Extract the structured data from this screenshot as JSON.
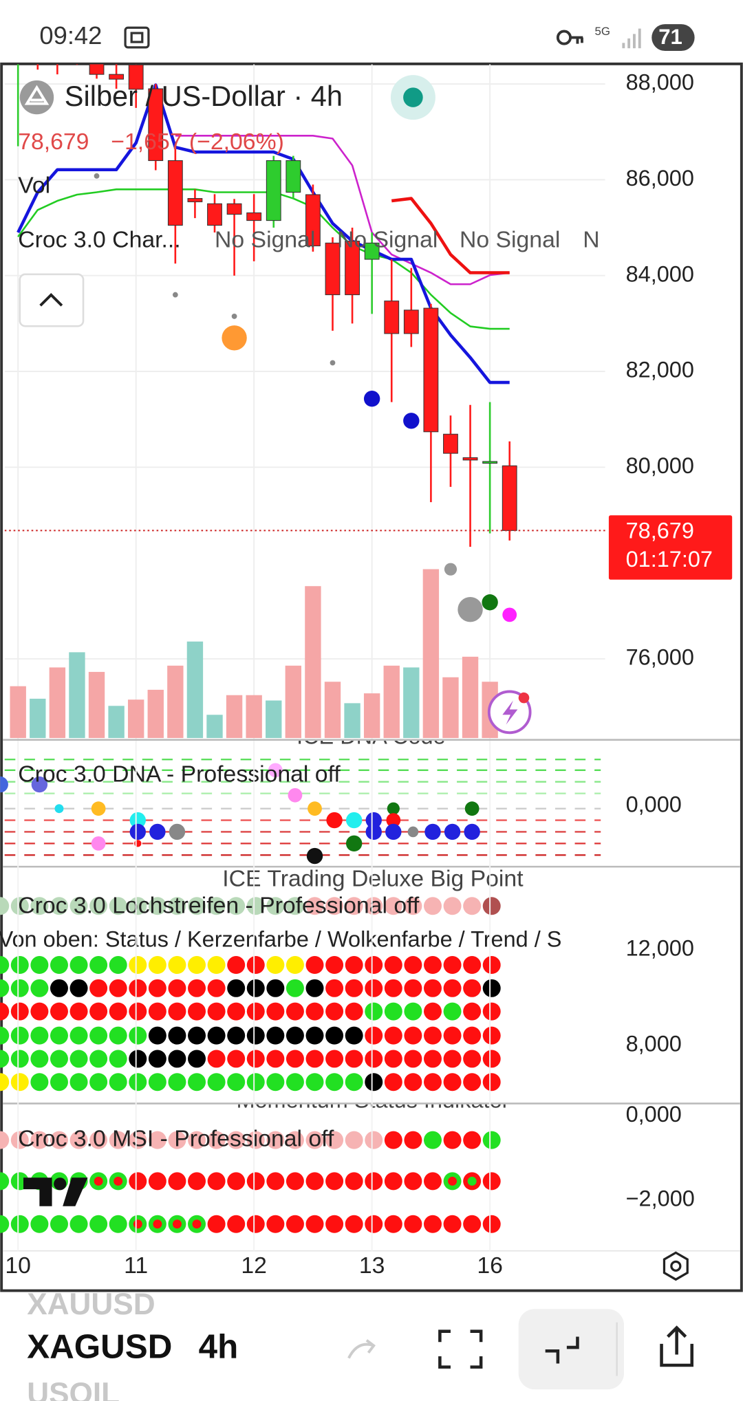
{
  "status_bar": {
    "time": "09:42",
    "network": "5G",
    "battery": "71"
  },
  "chart_data": {
    "type": "candlestick",
    "title": "Silber / US-Dollar · 4h",
    "legend": {
      "price": "78,679",
      "change": "−1,657 (−2,06%)",
      "volume": "Vol",
      "indicator": "Croc 3.0 Char...",
      "signals": [
        "No Signal",
        "No Signal",
        "No Signal",
        "N"
      ]
    },
    "categories": [
      "10",
      null,
      null,
      null,
      null,
      null,
      "11",
      null,
      null,
      null,
      null,
      null,
      "12",
      null,
      null,
      null,
      null,
      null,
      "13",
      null,
      null,
      null,
      null,
      null,
      "16",
      null
    ],
    "open": [
      88.6,
      88.8,
      88.7,
      88.9,
      88.6,
      88.2,
      88.4,
      87.9,
      86.4,
      85.61,
      85.5,
      85.5,
      85.31,
      85.15,
      85.74,
      85.69,
      84.68,
      84.72,
      84.34,
      83.47,
      83.28,
      83.32,
      80.69,
      80.2,
      80.09,
      80.03
    ],
    "high": [
      89.0,
      89.2,
      89.0,
      89.3,
      89.0,
      88.6,
      88.6,
      88.0,
      86.68,
      85.8,
      85.7,
      85.6,
      85.7,
      86.5,
      86.5,
      85.9,
      84.8,
      85.0,
      84.9,
      84.34,
      84.16,
      83.41,
      81.08,
      81.3,
      81.36,
      80.54
    ],
    "low": [
      86.7,
      88.3,
      88.2,
      88.4,
      88.11,
      87.9,
      87.5,
      86.2,
      84.25,
      85.2,
      84.9,
      84.0,
      84.3,
      85.0,
      85.6,
      84.5,
      82.85,
      83.0,
      83.2,
      81.36,
      82.51,
      79.27,
      79.59,
      78.34,
      78.62,
      78.47
    ],
    "close": [
      88.9,
      88.6,
      88.5,
      88.6,
      88.2,
      88.1,
      87.89,
      86.4,
      85.05,
      85.54,
      85.05,
      85.28,
      85.15,
      86.4,
      86.4,
      84.62,
      83.6,
      83.6,
      84.68,
      82.79,
      82.79,
      80.74,
      80.29,
      80.15,
      80.12,
      78.679
    ],
    "up_color": "#2ecc2e",
    "down_color": "#ff1a1a",
    "series": [
      {
        "color": "#22cc22",
        "width": 2,
        "values": [
          84.81,
          85.37,
          85.56,
          85.69,
          85.74,
          85.8,
          85.8,
          85.8,
          85.8,
          85.8,
          85.74,
          85.74,
          85.74,
          85.74,
          85.61,
          85.43,
          85.0,
          84.62,
          84.44,
          84.34,
          84.06,
          83.6,
          83.22,
          82.94,
          82.89,
          82.89
        ]
      },
      {
        "color": "#cc22cc",
        "width": 2,
        "values": [
          null,
          null,
          null,
          null,
          null,
          null,
          null,
          null,
          86.92,
          86.92,
          86.92,
          86.92,
          86.92,
          86.92,
          86.92,
          86.92,
          86.86,
          86.3,
          84.9,
          84.44,
          84.25,
          84.06,
          83.82,
          83.82,
          84.01,
          84.06
        ]
      },
      {
        "color": "#1515dd",
        "width": 3.5,
        "values": [
          84.9,
          85.74,
          86.21,
          86.21,
          86.21,
          86.21,
          86.77,
          87.98,
          86.68,
          86.58,
          86.58,
          86.58,
          86.58,
          86.58,
          86.43,
          85.74,
          85.09,
          84.72,
          84.53,
          84.34,
          84.34,
          83.32,
          82.76,
          82.29,
          81.77,
          81.77
        ]
      },
      {
        "color": "#ee1111",
        "width": 3.5,
        "values": [
          null,
          null,
          null,
          null,
          null,
          null,
          null,
          null,
          null,
          null,
          null,
          null,
          null,
          null,
          null,
          null,
          null,
          null,
          null,
          85.56,
          85.61,
          85.09,
          84.44,
          84.06,
          84.06,
          84.06
        ]
      }
    ],
    "markers": [
      {
        "color": "#ff9933",
        "size": 14,
        "values": [
          null,
          null,
          null,
          null,
          null,
          null,
          null,
          null,
          null,
          null,
          null,
          82.7,
          null,
          null,
          null,
          null,
          null,
          null,
          null,
          null,
          null,
          null,
          null,
          null,
          null,
          null
        ]
      },
      {
        "color": "#1111cc",
        "size": 9,
        "values": [
          null,
          null,
          null,
          null,
          null,
          null,
          null,
          null,
          null,
          null,
          null,
          null,
          null,
          null,
          null,
          null,
          null,
          null,
          81.43,
          null,
          80.97,
          null,
          null,
          null,
          null,
          null
        ]
      },
      {
        "color": "#888888",
        "size": 3,
        "values": [
          null,
          null,
          null,
          null,
          86.08,
          null,
          null,
          null,
          83.6,
          null,
          null,
          83.15,
          null,
          null,
          null,
          null,
          82.18,
          null,
          null,
          null,
          null,
          null,
          null,
          null,
          null,
          null
        ]
      },
      {
        "color": "#999999",
        "size": 7,
        "values": [
          null,
          null,
          null,
          null,
          null,
          null,
          null,
          null,
          null,
          null,
          null,
          null,
          null,
          null,
          null,
          null,
          null,
          null,
          null,
          null,
          null,
          null,
          77.87,
          null,
          null,
          null
        ]
      },
      {
        "color": "#999999",
        "size": 14,
        "values": [
          null,
          null,
          null,
          null,
          null,
          null,
          null,
          null,
          null,
          null,
          null,
          null,
          null,
          null,
          null,
          null,
          null,
          null,
          null,
          null,
          null,
          null,
          null,
          77.03,
          null,
          null
        ]
      },
      {
        "color": "#117711",
        "size": 9,
        "values": [
          null,
          null,
          null,
          null,
          null,
          null,
          null,
          null,
          null,
          null,
          null,
          null,
          null,
          null,
          null,
          null,
          null,
          null,
          null,
          null,
          null,
          null,
          null,
          null,
          77.18,
          null
        ]
      },
      {
        "color": "#ff22ff",
        "size": 8,
        "values": [
          null,
          null,
          null,
          null,
          null,
          null,
          null,
          null,
          null,
          null,
          null,
          null,
          null,
          null,
          null,
          null,
          null,
          null,
          null,
          null,
          null,
          null,
          null,
          null,
          null,
          76.92
        ]
      }
    ],
    "volume": {
      "values": [
        58,
        44,
        79,
        96,
        74,
        36,
        43,
        54,
        81,
        108,
        26,
        48,
        48,
        42,
        81,
        170,
        63,
        39,
        50,
        81,
        79,
        189,
        68,
        91,
        63,
        null
      ],
      "ylim": [
        0,
        400
      ],
      "colors": "PTPTPTPPPTTPPTPPPTPPTPPPPP",
      "palette": {
        "P": "#f5a6a6",
        "T": "#8ed2c8"
      }
    },
    "ylim": [
      74.31,
      88.41
    ],
    "yticks": [
      {
        "value": 88,
        "label": "88,000"
      },
      {
        "value": 86,
        "label": "86,000"
      },
      {
        "value": 84,
        "label": "84,000"
      },
      {
        "value": 82,
        "label": "82,000"
      },
      {
        "value": 80,
        "label": "80,000"
      },
      {
        "value": 76,
        "label": "76,000"
      }
    ],
    "grid": true,
    "last_label": "78,679",
    "countdown": "01:17:07"
  },
  "panes": [
    {
      "title": "ICE DNA Code",
      "legend": "Croc 3.0 DNA - Professional off",
      "axis": [
        "0,000"
      ]
    },
    {
      "title": "ICE Trading Deluxe Big Point",
      "legend": "Croc 3.0 Lochstreifen - Professional off",
      "note": "Von oben: Status / Kerzenfarbe / Wolkenfarbe / Trend / S",
      "axis": [
        "12,000",
        "8,000"
      ],
      "rows": [
        "QQQQQQQQQQQQQQQQPPPPPPPPPX",
        "GGGGGGGYYYYYRRYYRRRRRRRRRR",
        "GGGKKRRRRRRRKKKGKRRRRRRRRK",
        "RRRRRRRRRRRRRRRRRRRGGGRGRR",
        "GGGGGGGGKKKKKKKKKKKRRRRRRR",
        "GGGGGGGKKKKRRRRRRRRRRRRRRR",
        "YYGGGGGGGGGGGGGGGGGKRRRRRR"
      ]
    },
    {
      "title": "Momentum Status Indikator",
      "legend": "Croc 3.0 MSI - Professional off",
      "axis": [
        "0,000",
        "−2,000"
      ],
      "rows": [
        "PPPPPPPPPPPPPPPPPPPPRRGRRG",
        "GGGGGggRRRRRRRRRRRRRRRRgrR",
        "GGGGGGGggggRRRRRRRRRRRRRRR"
      ]
    }
  ],
  "dot_palette": {
    "G": "#22e022",
    "Y": "#ffee00",
    "R": "#ff1010",
    "K": "#000000",
    "P": "#f6b3b3",
    "Q": "#b9d9b9",
    "X": "#b05050",
    "g": [
      "#22e022",
      "#ff1010"
    ],
    "r": [
      "#ff1010",
      "#22e022"
    ]
  },
  "toolbar": {
    "prev": "XAUUSD",
    "symbol": "XAGUSD",
    "interval": "4h",
    "next": "USOIL"
  }
}
